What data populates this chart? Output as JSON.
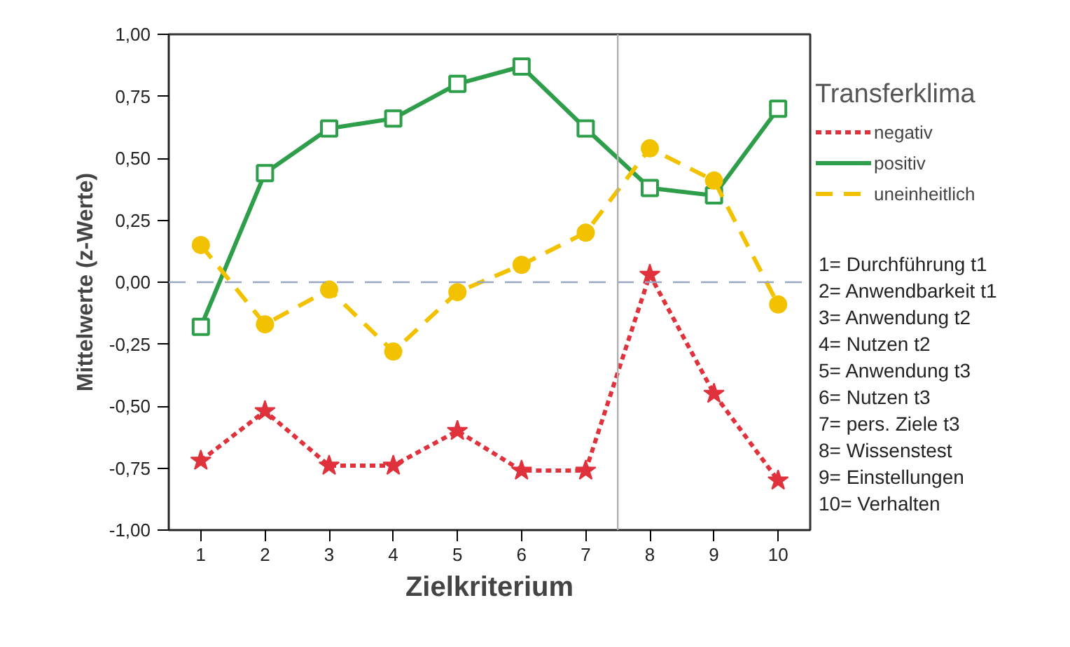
{
  "chart_data": {
    "type": "line",
    "xlabel": "Zielkriterium",
    "ylabel": "Mittelwerte (z-Werte)",
    "legend_title": "Transferklima",
    "x": [
      1,
      2,
      3,
      4,
      5,
      6,
      7,
      8,
      9,
      10
    ],
    "series": [
      {
        "name": "negativ",
        "color": "#e0323c",
        "marker": "star",
        "line_style": "dotted",
        "values": [
          -0.72,
          -0.52,
          -0.74,
          -0.74,
          -0.6,
          -0.76,
          -0.76,
          0.03,
          -0.45,
          -0.8
        ]
      },
      {
        "name": "positiv",
        "color": "#2e9e4a",
        "marker": "square",
        "line_style": "solid",
        "values": [
          -0.18,
          0.44,
          0.62,
          0.66,
          0.8,
          0.87,
          0.62,
          0.38,
          0.35,
          0.7
        ]
      },
      {
        "name": "uneinheitlich",
        "color": "#f2c200",
        "marker": "circle",
        "line_style": "dashed",
        "values": [
          0.15,
          -0.17,
          -0.03,
          -0.28,
          -0.04,
          0.07,
          0.2,
          0.54,
          0.41,
          -0.09
        ]
      }
    ],
    "xlim": [
      0.5,
      10.5
    ],
    "xticks": [
      1,
      2,
      3,
      4,
      5,
      6,
      7,
      8,
      9,
      10
    ],
    "ylim": [
      -1,
      1
    ],
    "yticks": [
      {
        "value": -1,
        "label": "-1,00"
      },
      {
        "value": -0.75,
        "label": "-0,75"
      },
      {
        "value": -0.5,
        "label": "-0,50"
      },
      {
        "value": -0.25,
        "label": "-0,25"
      },
      {
        "value": 0,
        "label": "0,00"
      },
      {
        "value": 0.25,
        "label": "0,25"
      },
      {
        "value": 0.5,
        "label": "0,50"
      },
      {
        "value": 0.75,
        "label": "0,75"
      },
      {
        "value": 1,
        "label": "1,00"
      }
    ],
    "ref_lines": [
      {
        "axis": "y",
        "value": 0,
        "color": "#9aa6c0",
        "line_style": "dashed"
      },
      {
        "axis": "x",
        "value": 7.5,
        "color": "#b0b0b0",
        "line_style": "solid"
      }
    ],
    "grid": false,
    "legend": "right",
    "annotations": [
      "1= Durchführung t1",
      "2= Anwendbarkeit t1",
      "3= Anwendung t2",
      "4= Nutzen t2",
      "5= Anwendung t3",
      "6= Nutzen t3",
      "7= pers. Ziele t3",
      "8= Wissenstest",
      "9= Einstellungen",
      "10= Verhalten"
    ]
  }
}
